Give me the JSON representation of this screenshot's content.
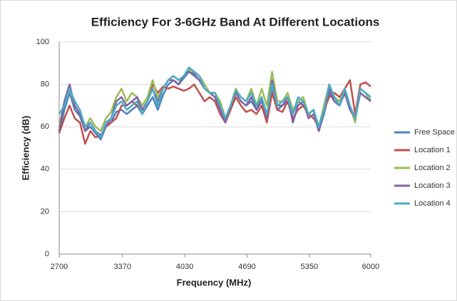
{
  "chart_data": {
    "type": "line",
    "title": "Efficiency For 3-6GHz Band At Different Locations",
    "xlabel": "Frequency  (MHz)",
    "ylabel": "Efficiency (dB)",
    "x": [
      2700,
      2755,
      2810,
      2865,
      2920,
      2975,
      3030,
      3085,
      3140,
      3195,
      3250,
      3305,
      3360,
      3415,
      3470,
      3525,
      3580,
      3635,
      3690,
      3745,
      3800,
      3855,
      3910,
      3965,
      4020,
      4075,
      4130,
      4185,
      4240,
      4295,
      4350,
      4405,
      4460,
      4515,
      4570,
      4625,
      4680,
      4735,
      4790,
      4845,
      4900,
      4955,
      5010,
      5065,
      5120,
      5175,
      5230,
      5285,
      5340,
      5395,
      5450,
      5505,
      5560,
      5615,
      5670,
      5725,
      5780,
      5835,
      5890,
      5945,
      6000
    ],
    "xlim": [
      2700,
      6000
    ],
    "xticks": [
      2700,
      3370,
      4030,
      4690,
      5350,
      6000
    ],
    "ylim": [
      0,
      100
    ],
    "yticks": [
      0,
      20,
      40,
      60,
      80,
      100
    ],
    "grid": true,
    "legend": "right",
    "series": [
      {
        "name": "Free Space",
        "color": "#4f81bd",
        "values": [
          57,
          68,
          76,
          68,
          65,
          58,
          60,
          57,
          54,
          60,
          62,
          67,
          68,
          66,
          68,
          70,
          66,
          70,
          74,
          68,
          75,
          80,
          82,
          80,
          83,
          86,
          84,
          82,
          78,
          76,
          76,
          70,
          63,
          68,
          76,
          72,
          70,
          72,
          68,
          72,
          66,
          78,
          68,
          70,
          72,
          66,
          72,
          70,
          66,
          68,
          58,
          66,
          76,
          72,
          70,
          76,
          68,
          65,
          76,
          74,
          73
        ]
      },
      {
        "name": "Location 1",
        "color": "#c0504d",
        "values": [
          57,
          64,
          70,
          64,
          62,
          52,
          58,
          55,
          56,
          60,
          62,
          64,
          70,
          70,
          72,
          70,
          68,
          72,
          80,
          76,
          79,
          78,
          79,
          78,
          77,
          78,
          80,
          76,
          72,
          74,
          72,
          66,
          62,
          68,
          74,
          70,
          67,
          68,
          66,
          70,
          62,
          76,
          68,
          67,
          72,
          64,
          68,
          70,
          66,
          64,
          60,
          68,
          74,
          76,
          74,
          78,
          82,
          66,
          80,
          81,
          79
        ]
      },
      {
        "name": "Location 2",
        "color": "#9bbb59",
        "values": [
          60,
          72,
          78,
          70,
          66,
          60,
          64,
          60,
          58,
          64,
          67,
          74,
          78,
          72,
          76,
          74,
          70,
          74,
          82,
          74,
          78,
          82,
          84,
          82,
          84,
          87,
          86,
          84,
          80,
          76,
          76,
          72,
          64,
          70,
          78,
          74,
          72,
          78,
          70,
          78,
          70,
          86,
          72,
          72,
          76,
          68,
          72,
          74,
          66,
          68,
          60,
          70,
          80,
          74,
          72,
          78,
          70,
          62,
          78,
          76,
          72
        ]
      },
      {
        "name": "Location 3",
        "color": "#8064a2",
        "values": [
          58,
          72,
          80,
          70,
          66,
          58,
          62,
          58,
          56,
          60,
          64,
          72,
          74,
          70,
          72,
          74,
          68,
          72,
          78,
          72,
          78,
          82,
          82,
          80,
          84,
          86,
          85,
          82,
          78,
          76,
          74,
          68,
          62,
          70,
          76,
          72,
          70,
          74,
          68,
          74,
          64,
          82,
          70,
          70,
          74,
          62,
          70,
          72,
          64,
          66,
          58,
          68,
          78,
          72,
          70,
          76,
          68,
          64,
          76,
          74,
          72
        ]
      },
      {
        "name": "Location 4",
        "color": "#4bacc6",
        "values": [
          66,
          70,
          78,
          72,
          68,
          60,
          62,
          58,
          55,
          62,
          64,
          70,
          72,
          68,
          70,
          72,
          66,
          72,
          78,
          70,
          78,
          82,
          84,
          82,
          84,
          88,
          86,
          84,
          78,
          76,
          76,
          70,
          64,
          70,
          77,
          74,
          72,
          76,
          70,
          74,
          66,
          80,
          70,
          72,
          74,
          66,
          74,
          72,
          66,
          68,
          60,
          68,
          80,
          74,
          70,
          78,
          70,
          64,
          78,
          76,
          74
        ]
      }
    ]
  }
}
